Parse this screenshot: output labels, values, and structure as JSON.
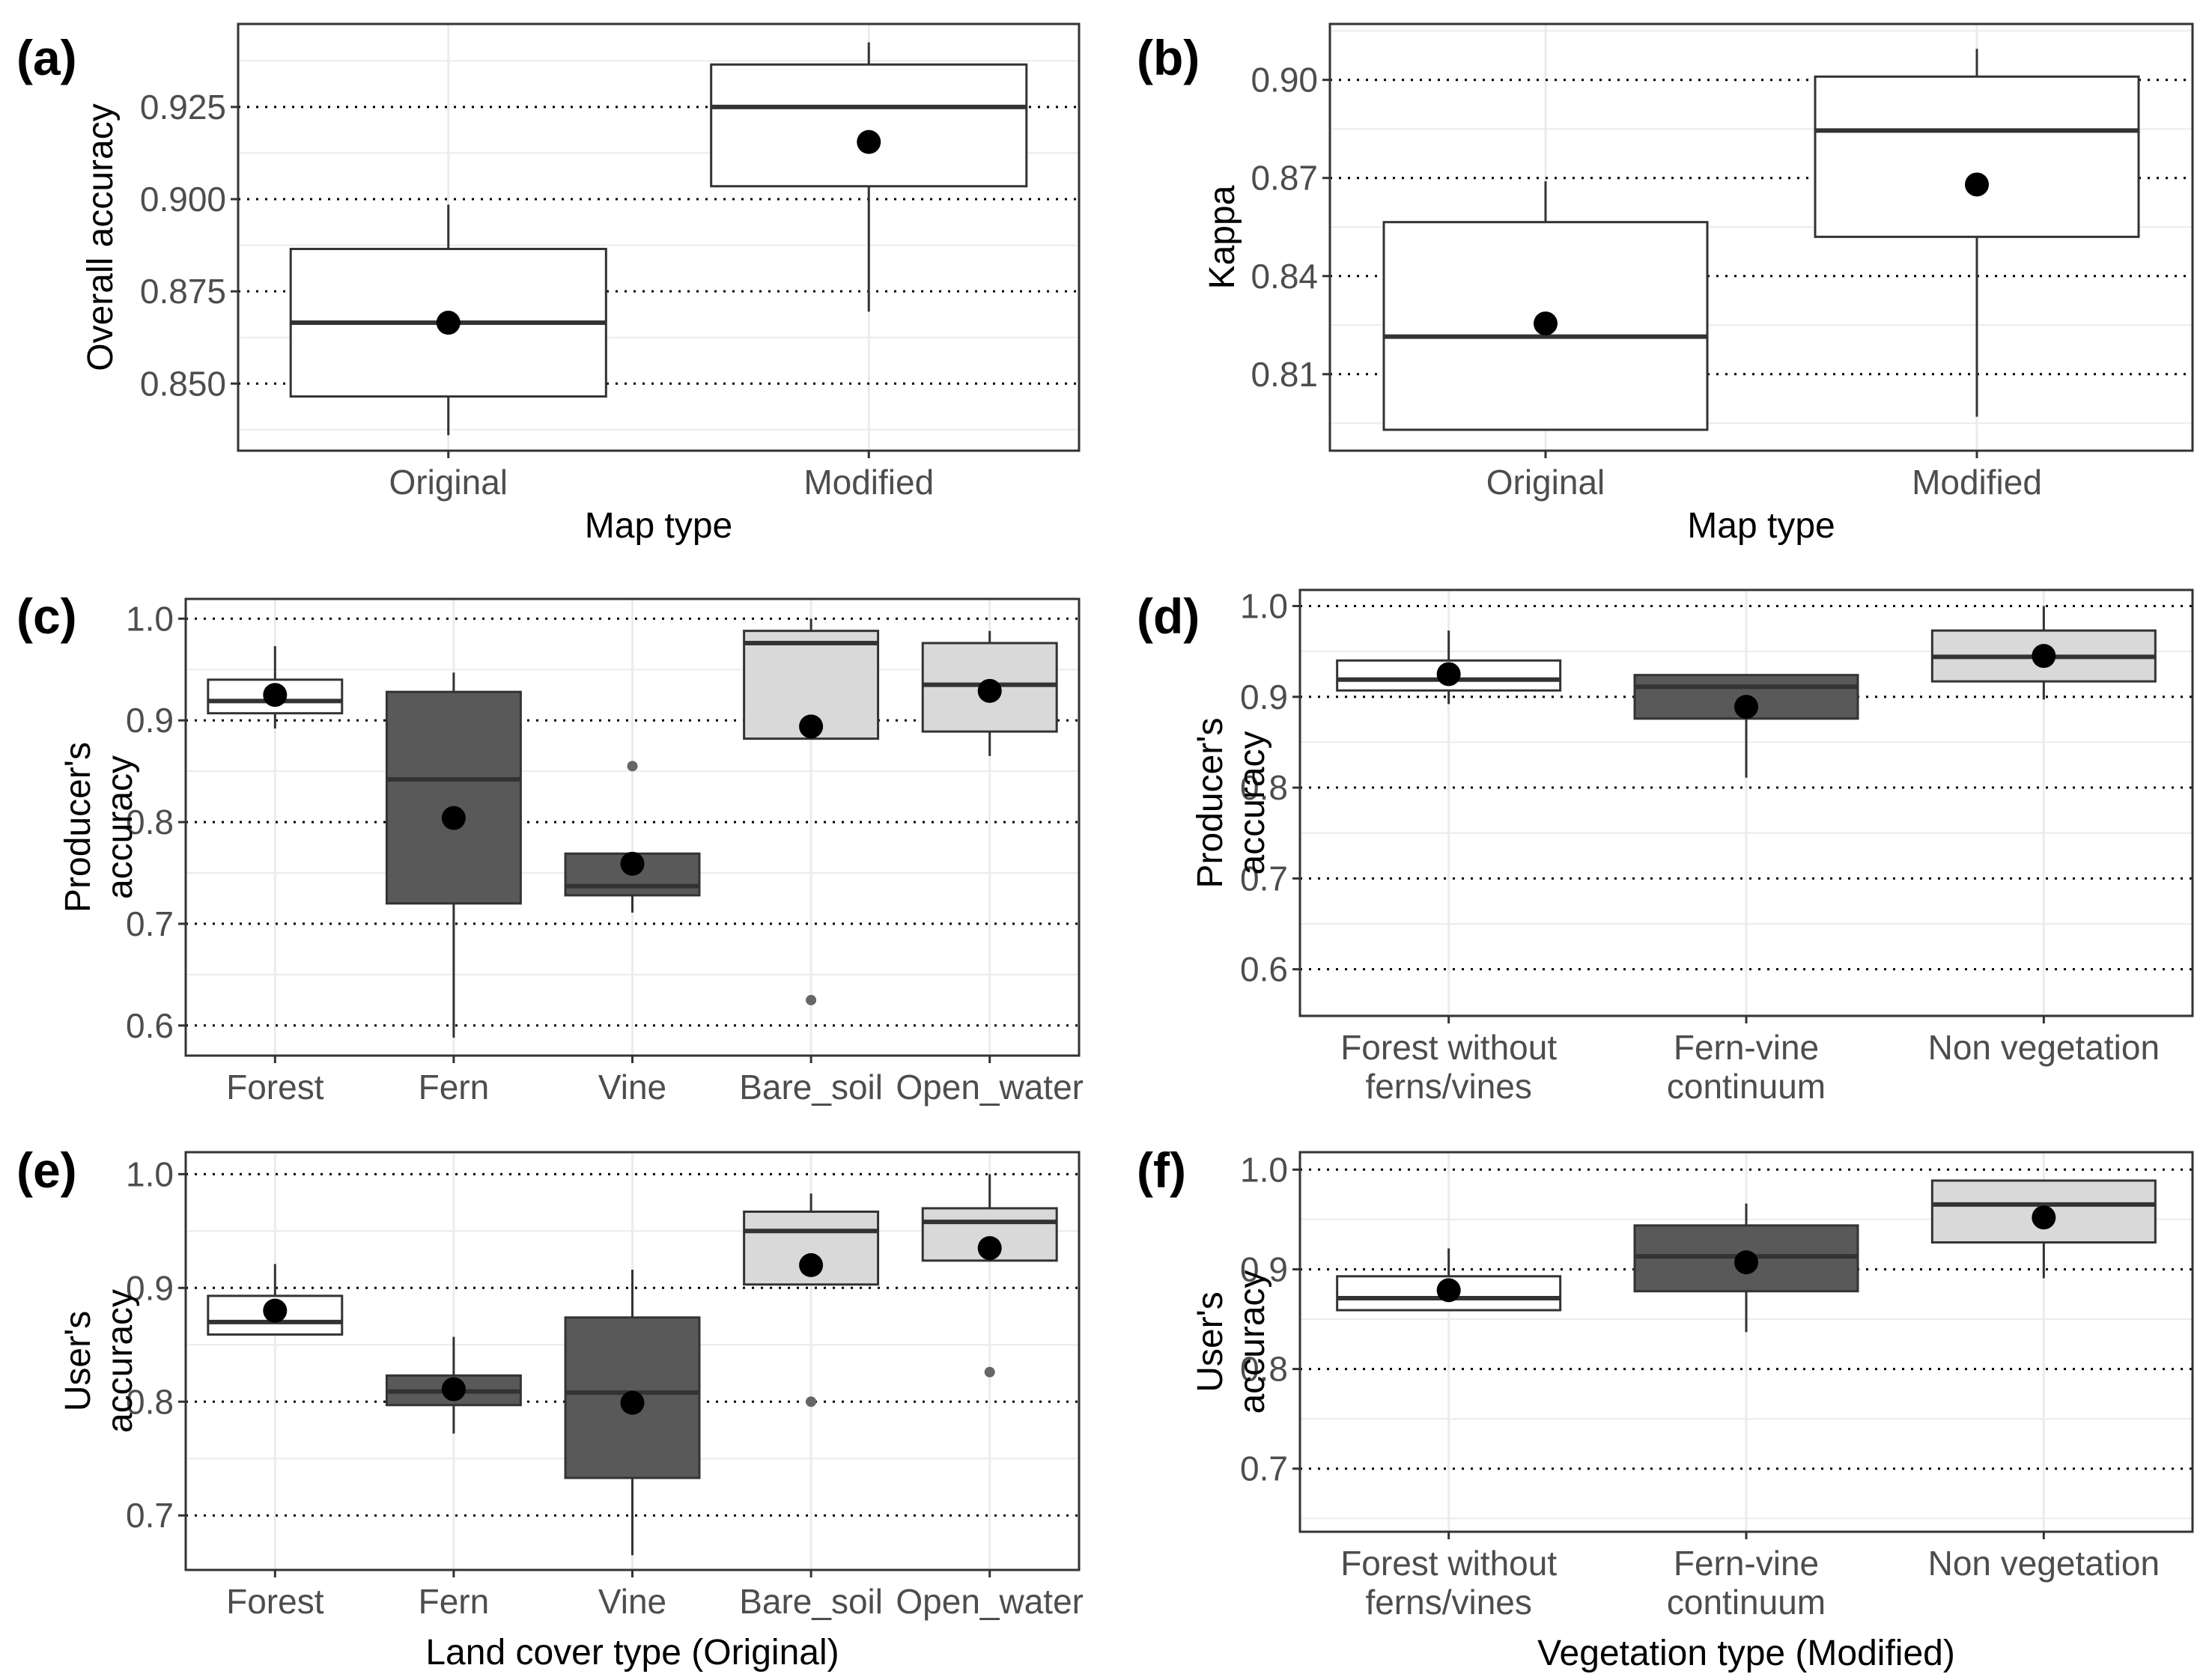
{
  "colors": {
    "fill_white": "#ffffff",
    "fill_dark": "#595959",
    "fill_light": "#d9d9d9",
    "box_line": "#333333",
    "mean_dot": "#000000",
    "outlier": "#666666",
    "grid_minor": "#ebebeb",
    "grid_dotted": "#000000"
  },
  "chart_data": [
    {
      "id": "a",
      "label": "(a)",
      "type": "boxplot",
      "xlabel": [
        "Map type"
      ],
      "ylabel": [
        "Overall accuracy"
      ],
      "ylim": [
        0.8318,
        0.9475
      ],
      "yticks": [
        0.85,
        0.875,
        0.9,
        0.925
      ],
      "ytick_labels": [
        "0.850",
        "0.875",
        "0.900",
        "0.925"
      ],
      "categories": [
        {
          "label": [
            "Original"
          ],
          "fill": "white",
          "whisker_low": 0.836,
          "q1": 0.8465,
          "median": 0.8665,
          "q3": 0.8865,
          "whisker_high": 0.8985,
          "mean": 0.8665,
          "outliers": []
        },
        {
          "label": [
            "Modified"
          ],
          "fill": "white",
          "whisker_low": 0.8695,
          "q1": 0.9035,
          "median": 0.925,
          "q3": 0.9365,
          "whisker_high": 0.9425,
          "mean": 0.9155,
          "outliers": []
        }
      ]
    },
    {
      "id": "b",
      "label": "(b)",
      "type": "boxplot",
      "xlabel": [
        "Map type"
      ],
      "ylabel": [
        "Kappa"
      ],
      "ylim": [
        0.7866,
        0.9171
      ],
      "yticks": [
        0.81,
        0.84,
        0.87,
        0.9
      ],
      "ytick_labels": [
        "0.81",
        "0.84",
        "0.87",
        "0.90"
      ],
      "categories": [
        {
          "label": [
            "Original"
          ],
          "fill": "white",
          "whisker_low": 0.793,
          "q1": 0.793,
          "median": 0.8215,
          "q3": 0.8565,
          "whisker_high": 0.869,
          "mean": 0.8255,
          "outliers": []
        },
        {
          "label": [
            "Modified"
          ],
          "fill": "white",
          "whisker_low": 0.797,
          "q1": 0.852,
          "median": 0.8845,
          "q3": 0.901,
          "whisker_high": 0.9095,
          "mean": 0.868,
          "outliers": []
        }
      ]
    },
    {
      "id": "c",
      "label": "(c)",
      "type": "boxplot",
      "xlabel": [],
      "ylabel": [
        "Producer's",
        "accuracy"
      ],
      "ylim": [
        0.5704,
        1.0194
      ],
      "yticks": [
        0.6,
        0.7,
        0.8,
        0.9,
        1.0
      ],
      "ytick_labels": [
        "0.6",
        "0.7",
        "0.8",
        "0.9",
        "1.0"
      ],
      "categories": [
        {
          "label": [
            "Forest"
          ],
          "fill": "white",
          "whisker_low": 0.892,
          "q1": 0.907,
          "median": 0.919,
          "q3": 0.94,
          "whisker_high": 0.973,
          "mean": 0.925,
          "outliers": []
        },
        {
          "label": [
            "Fern"
          ],
          "fill": "dark",
          "whisker_low": 0.588,
          "q1": 0.72,
          "median": 0.842,
          "q3": 0.928,
          "whisker_high": 0.947,
          "mean": 0.804,
          "outliers": []
        },
        {
          "label": [
            "Vine"
          ],
          "fill": "dark",
          "whisker_low": 0.711,
          "q1": 0.728,
          "median": 0.737,
          "q3": 0.769,
          "whisker_high": 0.769,
          "mean": 0.759,
          "outliers": [
            0.855
          ]
        },
        {
          "label": [
            "Bare_soil"
          ],
          "fill": "light",
          "whisker_low": 0.882,
          "q1": 0.882,
          "median": 0.976,
          "q3": 0.988,
          "whisker_high": 1.0,
          "mean": 0.894,
          "outliers": [
            0.625
          ]
        },
        {
          "label": [
            "Open_water"
          ],
          "fill": "light",
          "whisker_low": 0.865,
          "q1": 0.889,
          "median": 0.935,
          "q3": 0.976,
          "whisker_high": 0.988,
          "mean": 0.929,
          "outliers": []
        }
      ]
    },
    {
      "id": "d",
      "label": "(d)",
      "type": "boxplot",
      "xlabel": [],
      "ylabel": [
        "Producer's",
        "accuracy"
      ],
      "ylim": [
        0.5486,
        1.0177
      ],
      "yticks": [
        0.6,
        0.7,
        0.8,
        0.9,
        1.0
      ],
      "ytick_labels": [
        "0.6",
        "0.7",
        "0.8",
        "0.9",
        "1.0"
      ],
      "categories": [
        {
          "label": [
            "Forest without",
            "ferns/vines"
          ],
          "fill": "white",
          "whisker_low": 0.892,
          "q1": 0.907,
          "median": 0.919,
          "q3": 0.94,
          "whisker_high": 0.973,
          "mean": 0.925,
          "outliers": []
        },
        {
          "label": [
            "Fern-vine",
            "continuum"
          ],
          "fill": "dark",
          "whisker_low": 0.811,
          "q1": 0.876,
          "median": 0.911,
          "q3": 0.924,
          "whisker_high": 0.924,
          "mean": 0.889,
          "outliers": []
        },
        {
          "label": [
            "Non vegetation"
          ],
          "fill": "light",
          "whisker_low": 0.897,
          "q1": 0.917,
          "median": 0.944,
          "q3": 0.973,
          "whisker_high": 1.0,
          "mean": 0.945,
          "outliers": []
        }
      ]
    },
    {
      "id": "e",
      "label": "(e)",
      "type": "boxplot",
      "xlabel": [
        "Land cover type (Original)"
      ],
      "ylabel": [
        "User's",
        "accuracy"
      ],
      "ylim": [
        0.6521,
        1.0193
      ],
      "yticks": [
        0.7,
        0.8,
        0.9,
        1.0
      ],
      "ytick_labels": [
        "0.7",
        "0.8",
        "0.9",
        "1.0"
      ],
      "categories": [
        {
          "label": [
            "Forest"
          ],
          "fill": "white",
          "whisker_low": 0.859,
          "q1": 0.859,
          "median": 0.87,
          "q3": 0.893,
          "whisker_high": 0.921,
          "mean": 0.88,
          "outliers": []
        },
        {
          "label": [
            "Fern"
          ],
          "fill": "dark",
          "whisker_low": 0.772,
          "q1": 0.797,
          "median": 0.809,
          "q3": 0.823,
          "whisker_high": 0.857,
          "mean": 0.811,
          "outliers": []
        },
        {
          "label": [
            "Vine"
          ],
          "fill": "dark",
          "whisker_low": 0.665,
          "q1": 0.733,
          "median": 0.808,
          "q3": 0.874,
          "whisker_high": 0.916,
          "mean": 0.799,
          "outliers": []
        },
        {
          "label": [
            "Bare_soil"
          ],
          "fill": "light",
          "whisker_low": 0.903,
          "q1": 0.903,
          "median": 0.95,
          "q3": 0.967,
          "whisker_high": 0.983,
          "mean": 0.92,
          "outliers": [
            0.8
          ]
        },
        {
          "label": [
            "Open_water"
          ],
          "fill": "light",
          "whisker_low": 0.924,
          "q1": 0.924,
          "median": 0.958,
          "q3": 0.97,
          "whisker_high": 1.0,
          "mean": 0.935,
          "outliers": [
            0.826
          ]
        }
      ]
    },
    {
      "id": "f",
      "label": "(f)",
      "type": "boxplot",
      "xlabel": [
        "Vegetation type (Modified)"
      ],
      "ylabel": [
        "User's",
        "accuracy"
      ],
      "ylim": [
        0.6367,
        1.0175
      ],
      "yticks": [
        0.7,
        0.8,
        0.9,
        1.0
      ],
      "ytick_labels": [
        "0.7",
        "0.8",
        "0.9",
        "1.0"
      ],
      "categories": [
        {
          "label": [
            "Forest without",
            "ferns/vines"
          ],
          "fill": "white",
          "whisker_low": 0.859,
          "q1": 0.859,
          "median": 0.871,
          "q3": 0.893,
          "whisker_high": 0.921,
          "mean": 0.879,
          "outliers": []
        },
        {
          "label": [
            "Fern-vine",
            "continuum"
          ],
          "fill": "dark",
          "whisker_low": 0.837,
          "q1": 0.878,
          "median": 0.913,
          "q3": 0.944,
          "whisker_high": 0.966,
          "mean": 0.907,
          "outliers": []
        },
        {
          "label": [
            "Non vegetation"
          ],
          "fill": "light",
          "whisker_low": 0.891,
          "q1": 0.927,
          "median": 0.965,
          "q3": 0.989,
          "whisker_high": 0.989,
          "mean": 0.952,
          "outliers": []
        }
      ]
    }
  ]
}
